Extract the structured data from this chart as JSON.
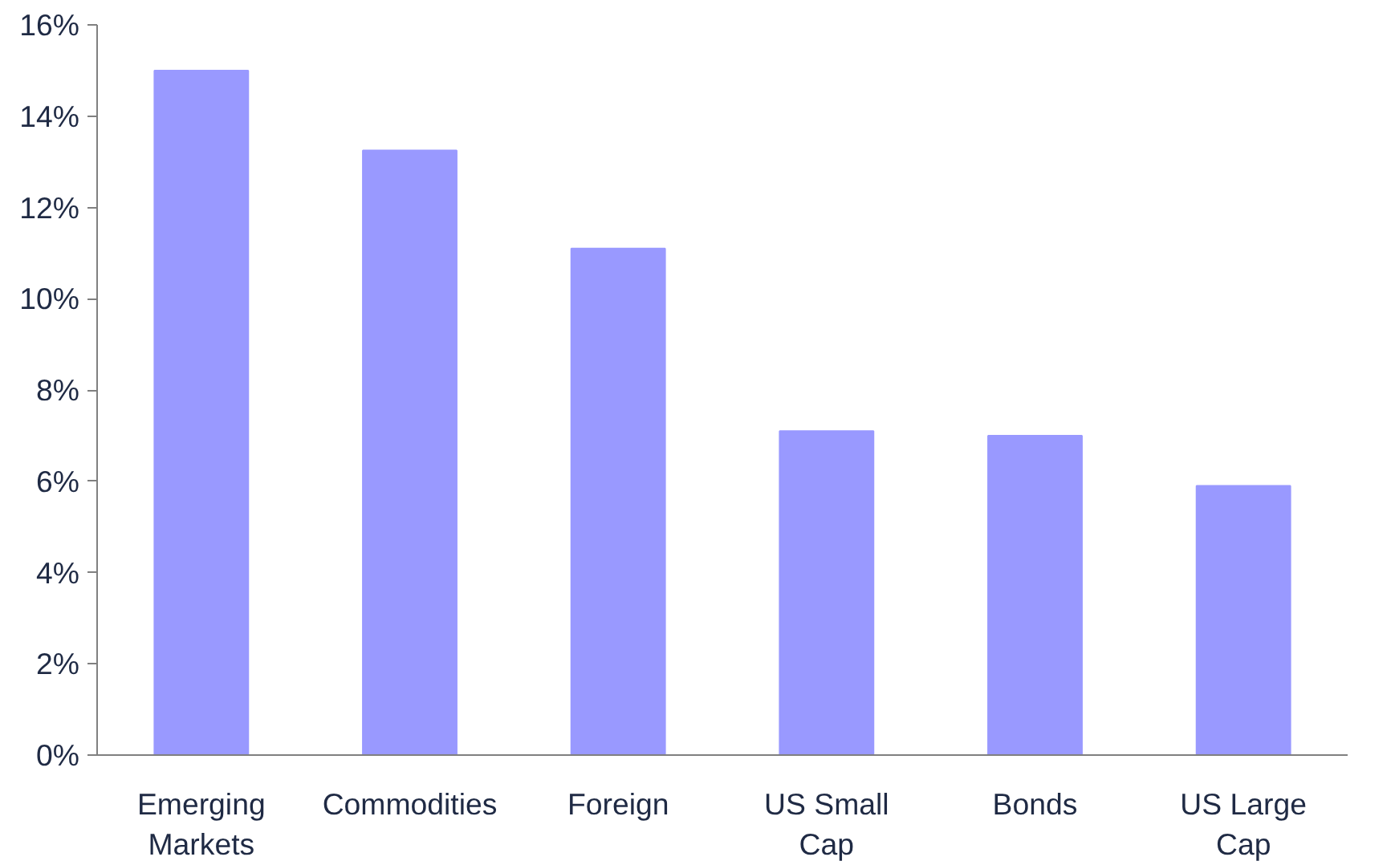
{
  "chart_data": {
    "type": "bar",
    "categories": [
      "Emerging\nMarkets",
      "Commodities",
      "Foreign",
      "US Small\nCap",
      "Bonds",
      "US Large\nCap"
    ],
    "values": [
      15.0,
      13.25,
      11.1,
      7.1,
      7.0,
      5.9
    ],
    "color": "#9999ff",
    "ylim": [
      0,
      16
    ],
    "yticks": [
      {
        "value": 0,
        "label": "0%"
      },
      {
        "value": 2,
        "label": "2%"
      },
      {
        "value": 4,
        "label": "4%"
      },
      {
        "value": 6,
        "label": "6%"
      },
      {
        "value": 8,
        "label": "8%"
      },
      {
        "value": 10,
        "label": "10%"
      },
      {
        "value": 12,
        "label": "12%"
      },
      {
        "value": 14,
        "label": "14%"
      },
      {
        "value": 16,
        "label": "16%"
      }
    ],
    "grid": false
  }
}
